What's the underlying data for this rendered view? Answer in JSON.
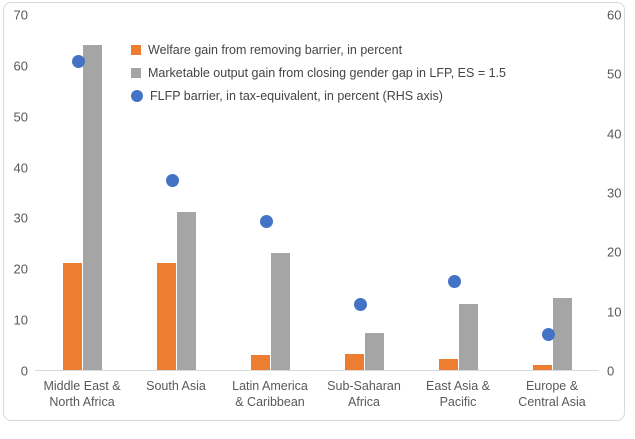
{
  "chart_data": {
    "type": "bar",
    "subtype": "combo-bar-scatter-dual-axis",
    "title": "",
    "categories": [
      [
        "Middle East &",
        "North Africa"
      ],
      [
        "South Asia"
      ],
      [
        "Latin America",
        "& Caribbean"
      ],
      [
        "Sub-Saharan",
        "Africa"
      ],
      [
        "East Asia &",
        "Pacific"
      ],
      [
        "Europe &",
        "Central Asia"
      ]
    ],
    "series": [
      {
        "name": "Welfare gain from removing barrier, in percent",
        "type": "bar",
        "axis": "left",
        "color": "#ED7D31",
        "values": [
          21,
          21,
          3,
          3.2,
          2.2,
          1
        ]
      },
      {
        "name": "Marketable output gain from closing gender gap in LFP, ES = 1.5",
        "type": "bar",
        "axis": "left",
        "color": "#A5A5A5",
        "values": [
          64,
          31,
          23,
          7.3,
          13,
          14.2
        ]
      },
      {
        "name": "FLFP barrier, in tax-equivalent, in percent (RHS axis)",
        "type": "scatter",
        "axis": "right",
        "color": "#4472C4",
        "values": [
          52,
          32,
          25,
          11,
          15,
          6
        ]
      }
    ],
    "left_axis": {
      "min": 0,
      "max": 70,
      "ticks": [
        70,
        60,
        50,
        40,
        30,
        20,
        10,
        0
      ]
    },
    "right_axis": {
      "min": 0,
      "max": 60,
      "ticks": [
        60,
        50,
        40,
        30,
        20,
        10,
        0
      ]
    },
    "grid": false,
    "legend_position": "top-center-inside"
  },
  "style": {
    "axis_text_color": "#595959",
    "legend_text_color": "#444444",
    "axis_line_color": "#D9D9D9",
    "frame_border_color": "#D9D9D9",
    "background": "#FFFFFF"
  }
}
